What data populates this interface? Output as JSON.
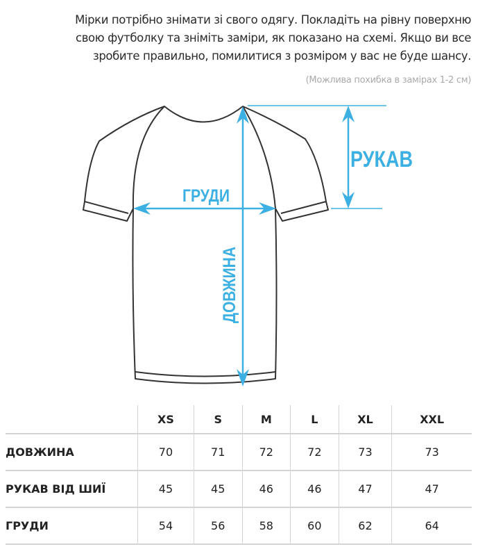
{
  "intro": {
    "lines": [
      "Мірки потрібно знімати зі свого одягу. Покладіть на рівну поверхню",
      "свою футболку та зніміть заміри, як показано на схемі. Якщо ви все",
      "зробите правильно, помилитися з розміром у вас не буде шансу."
    ],
    "note": "(Можлива похибка в замірах 1-2 см)"
  },
  "diagram": {
    "accent_color": "#3cb0e2",
    "labels": {
      "sleeve": "РУКАВ",
      "chest": "ГРУДИ",
      "length": "ДОВЖИНА"
    }
  },
  "size_table": {
    "headers": [
      "XS",
      "S",
      "M",
      "L",
      "XL",
      "XXL"
    ],
    "rows": [
      {
        "label": "ДОВЖИНА",
        "values": [
          "70",
          "71",
          "72",
          "72",
          "73",
          "73"
        ]
      },
      {
        "label": "РУКАВ ВІД ШИЇ",
        "values": [
          "45",
          "45",
          "46",
          "46",
          "47",
          "47"
        ]
      },
      {
        "label": "ГРУДИ",
        "values": [
          "54",
          "56",
          "58",
          "60",
          "62",
          "64"
        ]
      }
    ]
  }
}
